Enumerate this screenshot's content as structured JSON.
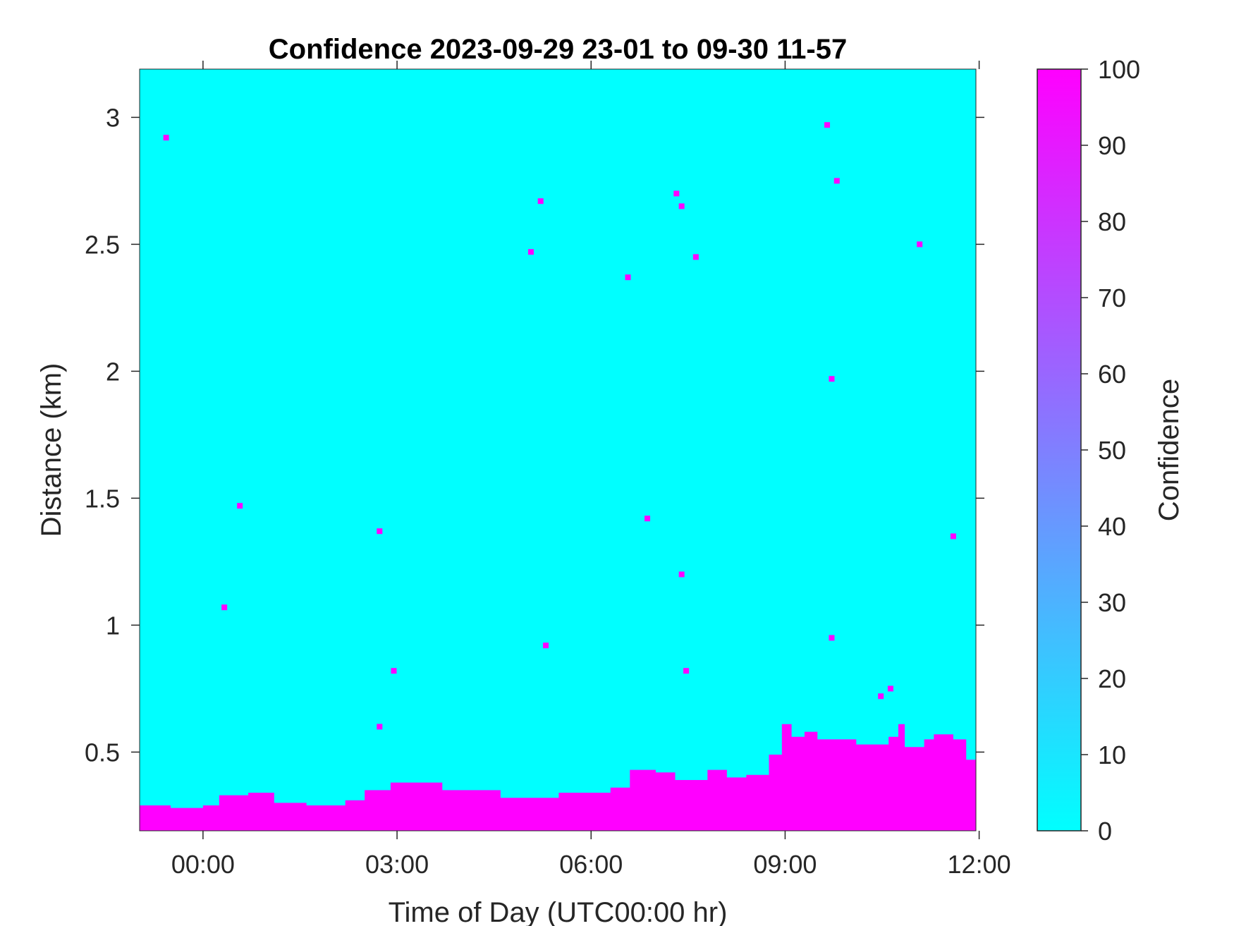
{
  "chart_data": {
    "type": "heatmap",
    "title": "Confidence 2023-09-29 23-01 to 09-30 11-57",
    "xlabel": "Time of Day (UTC00:00 hr)",
    "ylabel": "Distance (km)",
    "xlim_hours": [
      -0.98,
      11.95
    ],
    "ylim": [
      0.19,
      3.19
    ],
    "x_ticks": [
      {
        "value": 0,
        "label": "00:00"
      },
      {
        "value": 3,
        "label": "03:00"
      },
      {
        "value": 6,
        "label": "06:00"
      },
      {
        "value": 9,
        "label": "09:00"
      },
      {
        "value": 12,
        "label": "12:00"
      }
    ],
    "y_ticks": [
      {
        "value": 0.5,
        "label": "0.5"
      },
      {
        "value": 1,
        "label": "1"
      },
      {
        "value": 1.5,
        "label": "1.5"
      },
      {
        "value": 2,
        "label": "2"
      },
      {
        "value": 2.5,
        "label": "2.5"
      },
      {
        "value": 3,
        "label": "3"
      }
    ],
    "colorbar": {
      "label": "Confidence",
      "min": 0,
      "max": 100,
      "ticks": [
        "0",
        "10",
        "20",
        "30",
        "40",
        "50",
        "60",
        "70",
        "80",
        "90",
        "100"
      ],
      "color_low": "#00ffff",
      "color_high": "#ff00ff"
    },
    "background_value": 0,
    "high_confidence_boundary": [
      {
        "t": -0.98,
        "km": 0.29
      },
      {
        "t": -0.5,
        "km": 0.28
      },
      {
        "t": 0.0,
        "km": 0.29
      },
      {
        "t": 0.25,
        "km": 0.33
      },
      {
        "t": 0.7,
        "km": 0.34
      },
      {
        "t": 1.1,
        "km": 0.3
      },
      {
        "t": 1.6,
        "km": 0.29
      },
      {
        "t": 2.2,
        "km": 0.31
      },
      {
        "t": 2.5,
        "km": 0.35
      },
      {
        "t": 2.9,
        "km": 0.38
      },
      {
        "t": 3.3,
        "km": 0.38
      },
      {
        "t": 3.7,
        "km": 0.35
      },
      {
        "t": 4.2,
        "km": 0.35
      },
      {
        "t": 4.6,
        "km": 0.32
      },
      {
        "t": 5.0,
        "km": 0.32
      },
      {
        "t": 5.5,
        "km": 0.34
      },
      {
        "t": 6.0,
        "km": 0.34
      },
      {
        "t": 6.3,
        "km": 0.36
      },
      {
        "t": 6.6,
        "km": 0.43
      },
      {
        "t": 7.0,
        "km": 0.42
      },
      {
        "t": 7.3,
        "km": 0.39
      },
      {
        "t": 7.8,
        "km": 0.43
      },
      {
        "t": 8.1,
        "km": 0.4
      },
      {
        "t": 8.4,
        "km": 0.41
      },
      {
        "t": 8.75,
        "km": 0.49
      },
      {
        "t": 8.95,
        "km": 0.61
      },
      {
        "t": 9.1,
        "km": 0.56
      },
      {
        "t": 9.3,
        "km": 0.58
      },
      {
        "t": 9.5,
        "km": 0.55
      },
      {
        "t": 10.1,
        "km": 0.53
      },
      {
        "t": 10.6,
        "km": 0.56
      },
      {
        "t": 10.75,
        "km": 0.61
      },
      {
        "t": 10.85,
        "km": 0.52
      },
      {
        "t": 11.15,
        "km": 0.55
      },
      {
        "t": 11.3,
        "km": 0.57
      },
      {
        "t": 11.6,
        "km": 0.55
      },
      {
        "t": 11.8,
        "km": 0.47
      },
      {
        "t": 11.95,
        "km": 0.51
      }
    ],
    "high_confidence_points": [
      {
        "t": -0.57,
        "km": 2.92
      },
      {
        "t": 0.33,
        "km": 1.07
      },
      {
        "t": 0.57,
        "km": 1.47
      },
      {
        "t": 2.73,
        "km": 1.37
      },
      {
        "t": 2.73,
        "km": 0.6
      },
      {
        "t": 2.95,
        "km": 0.82
      },
      {
        "t": 5.07,
        "km": 2.47
      },
      {
        "t": 5.22,
        "km": 2.67
      },
      {
        "t": 5.3,
        "km": 0.92
      },
      {
        "t": 6.57,
        "km": 2.37
      },
      {
        "t": 6.87,
        "km": 1.42
      },
      {
        "t": 7.32,
        "km": 2.7
      },
      {
        "t": 7.4,
        "km": 2.65
      },
      {
        "t": 7.4,
        "km": 1.2
      },
      {
        "t": 7.47,
        "km": 0.82
      },
      {
        "t": 7.62,
        "km": 2.45
      },
      {
        "t": 9.65,
        "km": 2.97
      },
      {
        "t": 9.72,
        "km": 1.97
      },
      {
        "t": 9.72,
        "km": 0.95
      },
      {
        "t": 9.8,
        "km": 2.75
      },
      {
        "t": 10.48,
        "km": 0.72
      },
      {
        "t": 10.63,
        "km": 0.75
      },
      {
        "t": 11.08,
        "km": 2.5
      },
      {
        "t": 11.6,
        "km": 1.35
      }
    ],
    "point_value": 100,
    "grid": false
  }
}
